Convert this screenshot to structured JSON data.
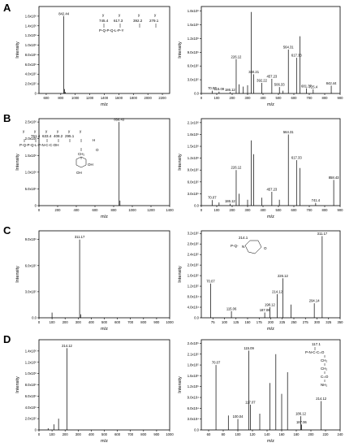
{
  "panel_letters": [
    "A",
    "B",
    "C",
    "D"
  ],
  "chart_data": [
    {
      "panel": "A-left",
      "type": "bar",
      "xlabel": "m/z",
      "ylabel": "Intensity",
      "xlim": [
        500,
        2300
      ],
      "ylim": [
        0,
        1800000.0
      ],
      "xticks": [
        600,
        800,
        1000,
        1200,
        1400,
        1600,
        1800,
        2000,
        2200
      ],
      "yticks": [
        0,
        200000,
        400000,
        600000,
        800000,
        1000000,
        1200000,
        1400000,
        1600000
      ],
      "ytick_labels": [
        "0",
        "2.0x10⁵",
        "4.0x10⁵",
        "6.0x10⁵",
        "8.0x10⁵",
        "1.0x10⁶",
        "1.2x10⁶",
        "1.4x10⁶",
        "1.6x10⁶"
      ],
      "peaks": [
        {
          "x": 842.44,
          "y": 1600000,
          "label": "842.44"
        },
        {
          "x": 852,
          "y": 90000,
          "label": ""
        },
        {
          "x": 862,
          "y": 30000,
          "label": ""
        }
      ]
    },
    {
      "panel": "A-right",
      "type": "bar",
      "xlabel": "m/z",
      "ylabel": "Intensity",
      "xlim": [
        0,
        900
      ],
      "ylim": [
        0,
        1900000.0
      ],
      "xticks": [
        0,
        100,
        200,
        300,
        400,
        500,
        600,
        700,
        800,
        900
      ],
      "yticks": [
        0,
        300000,
        600000,
        900000,
        1200000,
        1500000,
        1800000
      ],
      "ytick_labels": [
        "0.0",
        "3.0x10⁵",
        "6.0x10⁵",
        "9.0x10⁵",
        "1.2x10⁶",
        "1.5x10⁶",
        "1.8x10⁶"
      ],
      "peaks": [
        {
          "x": 70.07,
          "y": 60000,
          "label": "70.07"
        },
        {
          "x": 115.09,
          "y": 40000,
          "label": "115.09"
        },
        {
          "x": 186.12,
          "y": 30000,
          "label": "186.12"
        },
        {
          "x": 226.12,
          "y": 750000,
          "label": "226.12"
        },
        {
          "x": 244,
          "y": 200000,
          "label": ""
        },
        {
          "x": 272,
          "y": 150000,
          "label": ""
        },
        {
          "x": 300,
          "y": 180000,
          "label": ""
        },
        {
          "x": 323,
          "y": 1780000,
          "label": ""
        },
        {
          "x": 340.21,
          "y": 420000,
          "label": "340.21"
        },
        {
          "x": 392.22,
          "y": 230000,
          "label": "392.22"
        },
        {
          "x": 457.23,
          "y": 320000,
          "label": "457.23"
        },
        {
          "x": 506.33,
          "y": 140000,
          "label": "506.33"
        },
        {
          "x": 530,
          "y": 60000,
          "label": ""
        },
        {
          "x": 564.31,
          "y": 960000,
          "label": "564.31"
        },
        {
          "x": 617.33,
          "y": 780000,
          "label": "617.33"
        },
        {
          "x": 640,
          "y": 1250000,
          "label": ""
        },
        {
          "x": 681.37,
          "y": 110000,
          "label": "681.37"
        },
        {
          "x": 725.4,
          "y": 90000,
          "label": "725.4"
        },
        {
          "x": 842.44,
          "y": 170000,
          "label": "842.44"
        }
      ]
    },
    {
      "panel": "B-left",
      "type": "bar",
      "xlabel": "m/z",
      "ylabel": "Intensity",
      "xlim": [
        0,
        1400
      ],
      "ylim": [
        0,
        2600000.0
      ],
      "xticks": [
        0,
        200,
        400,
        600,
        800,
        1000,
        1200,
        1400
      ],
      "yticks": [
        0,
        500000,
        1000000,
        1500000,
        2000000,
        2500000
      ],
      "ytick_labels": [
        "0",
        "5.0x10⁵",
        "1.0x10⁶",
        "1.5x10⁶",
        "2.0x10⁶",
        "2.5x10⁶"
      ],
      "peaks": [
        {
          "x": 858.43,
          "y": 2500000,
          "label": "858.43"
        },
        {
          "x": 868,
          "y": 150000,
          "label": ""
        }
      ]
    },
    {
      "panel": "B-right",
      "type": "bar",
      "xlabel": "m/z",
      "ylabel": "Intensity",
      "xlim": [
        0,
        900
      ],
      "ylim": [
        0,
        2200000.0
      ],
      "xticks": [
        0,
        100,
        200,
        300,
        400,
        500,
        600,
        700,
        800,
        900
      ],
      "yticks": [
        0,
        300000,
        600000,
        900000,
        1200000,
        1500000,
        1800000,
        2100000
      ],
      "ytick_labels": [
        "0.0",
        "3.0x10⁵",
        "6.0x10⁵",
        "9.0x10⁵",
        "1.2x10⁶",
        "1.5x10⁶",
        "1.8x10⁶",
        "2.1x10⁶"
      ],
      "peaks": [
        {
          "x": 70.07,
          "y": 140000,
          "label": "70.07"
        },
        {
          "x": 115,
          "y": 80000,
          "label": ""
        },
        {
          "x": 186.12,
          "y": 50000,
          "label": "186.12"
        },
        {
          "x": 226.12,
          "y": 900000,
          "label": "226.12"
        },
        {
          "x": 244,
          "y": 300000,
          "label": ""
        },
        {
          "x": 300,
          "y": 150000,
          "label": ""
        },
        {
          "x": 323,
          "y": 1650000,
          "label": ""
        },
        {
          "x": 340.21,
          "y": 1300000,
          "label": ""
        },
        {
          "x": 392,
          "y": 200000,
          "label": ""
        },
        {
          "x": 457.23,
          "y": 350000,
          "label": "457.23"
        },
        {
          "x": 506,
          "y": 150000,
          "label": ""
        },
        {
          "x": 564.31,
          "y": 1800000,
          "label": "564.31"
        },
        {
          "x": 617.33,
          "y": 1150000,
          "label": "617.33"
        },
        {
          "x": 640,
          "y": 950000,
          "label": ""
        },
        {
          "x": 741.4,
          "y": 70000,
          "label": "741.4"
        },
        {
          "x": 858.43,
          "y": 650000,
          "label": "858.43"
        }
      ]
    },
    {
      "panel": "C-left",
      "type": "bar",
      "xlabel": "m/z",
      "ylabel": "Intensity",
      "xlim": [
        0,
        1000
      ],
      "ylim": [
        0,
        1000000.0
      ],
      "xticks": [
        0,
        100,
        200,
        300,
        400,
        500,
        600,
        700,
        800,
        900,
        1000
      ],
      "yticks": [
        0,
        300000,
        600000,
        900000
      ],
      "ytick_labels": [
        "0.0",
        "3.0x10⁵",
        "6.0x10⁵",
        "9.0x10⁵"
      ],
      "peaks": [
        {
          "x": 100,
          "y": 60000,
          "label": ""
        },
        {
          "x": 311.17,
          "y": 900000,
          "label": "311.17"
        },
        {
          "x": 320,
          "y": 40000,
          "label": ""
        }
      ]
    },
    {
      "panel": "C-right",
      "type": "bar",
      "xlabel": "m/z",
      "ylabel": "Intensity",
      "xlim": [
        50,
        350
      ],
      "ylim": [
        0,
        330000.0
      ],
      "xticks": [
        75,
        100,
        125,
        150,
        175,
        200,
        225,
        250,
        275,
        300,
        325,
        350
      ],
      "yticks": [
        0,
        40000,
        80000,
        120000,
        160000,
        200000,
        240000,
        280000,
        320000
      ],
      "ytick_labels": [
        "0.0",
        "4.0x10⁴",
        "8.0x10⁴",
        "1.2x10⁵",
        "1.6x10⁵",
        "2.0x10⁵",
        "2.4x10⁵",
        "2.8x10⁵",
        "3.2x10⁵"
      ],
      "peaks": [
        {
          "x": 70.07,
          "y": 130000,
          "label": "70.07"
        },
        {
          "x": 115.06,
          "y": 25000,
          "label": "115.06"
        },
        {
          "x": 187.06,
          "y": 20000,
          "label": "187.06"
        },
        {
          "x": 198.12,
          "y": 40000,
          "label": "198.12"
        },
        {
          "x": 214.12,
          "y": 90000,
          "label": "214.12"
        },
        {
          "x": 226.12,
          "y": 150000,
          "label": "226.12"
        },
        {
          "x": 244,
          "y": 50000,
          "label": ""
        },
        {
          "x": 294.14,
          "y": 55000,
          "label": "294.14"
        },
        {
          "x": 311.17,
          "y": 310000,
          "label": "311.17"
        }
      ]
    },
    {
      "panel": "D-left",
      "type": "bar",
      "xlabel": "m/z",
      "ylabel": "Intensity",
      "xlim": [
        0,
        1000
      ],
      "ylim": [
        0,
        1600000.0
      ],
      "xticks": [
        0,
        100,
        200,
        300,
        400,
        500,
        600,
        700,
        800,
        900,
        1000
      ],
      "yticks": [
        0,
        200000,
        400000,
        600000,
        800000,
        1000000,
        1200000,
        1400000
      ],
      "ytick_labels": [
        "0",
        "2.0x10⁵",
        "4.0x10⁵",
        "6.0x10⁵",
        "8.0x10⁵",
        "1.0x10⁶",
        "1.2x10⁶",
        "1.4x10⁶"
      ],
      "peaks": [
        {
          "x": 70,
          "y": 30000,
          "label": ""
        },
        {
          "x": 115,
          "y": 100000,
          "label": ""
        },
        {
          "x": 150,
          "y": 200000,
          "label": ""
        },
        {
          "x": 214.12,
          "y": 1450000,
          "label": "214.12"
        }
      ]
    },
    {
      "panel": "D-right",
      "type": "bar",
      "xlabel": "m/z",
      "ylabel": "Intensity",
      "xlim": [
        50,
        240
      ],
      "ylim": [
        0,
        250000.0
      ],
      "xticks": [
        60,
        80,
        100,
        120,
        140,
        160,
        180,
        200,
        220,
        240
      ],
      "yticks": [
        0,
        30000,
        60000,
        90000,
        120000,
        150000,
        180000,
        210000,
        240000
      ],
      "ytick_labels": [
        "0.0",
        "3.0x10⁴",
        "6.0x10⁴",
        "9.0x10⁴",
        "1.2x10⁵",
        "1.5x10⁵",
        "1.8x10⁵",
        "2.1x10⁵",
        "2.4x10⁵"
      ],
      "peaks": [
        {
          "x": 70.07,
          "y": 180000,
          "label": "70.07"
        },
        {
          "x": 87,
          "y": 40000,
          "label": ""
        },
        {
          "x": 100.04,
          "y": 30000,
          "label": "100.04"
        },
        {
          "x": 115.09,
          "y": 220000,
          "label": "115.09"
        },
        {
          "x": 117.07,
          "y": 70000,
          "label": "117.07"
        },
        {
          "x": 130,
          "y": 45000,
          "label": ""
        },
        {
          "x": 144,
          "y": 130000,
          "label": ""
        },
        {
          "x": 152,
          "y": 210000,
          "label": ""
        },
        {
          "x": 160,
          "y": 100000,
          "label": ""
        },
        {
          "x": 168,
          "y": 160000,
          "label": ""
        },
        {
          "x": 186.12,
          "y": 38000,
          "label": "186.12"
        },
        {
          "x": 187.06,
          "y": 15000,
          "label": "187.06"
        },
        {
          "x": 214.12,
          "y": 80000,
          "label": "214.12"
        }
      ]
    }
  ],
  "structures": {
    "A": {
      "masses": [
        "745.4",
        "617.3",
        "392.2",
        "279.1"
      ],
      "ions": [
        "y",
        "y",
        "y",
        "y"
      ],
      "sequence": "P-Q-P-Q-L-P-Y"
    },
    "B": {
      "masses": [
        "761.4",
        "633.4",
        "408.2",
        "295.1"
      ],
      "ions": [
        "y",
        "y",
        "y",
        "y",
        "y",
        "y"
      ],
      "sequence": "P-Q-P-Q-L-P-N-C-C-OH",
      "side_chain": [
        "H",
        "O",
        "CH₂",
        "OH",
        "OH"
      ]
    },
    "C": {
      "label": "P-Q-",
      "mass": "214.1",
      "ring_o": "O",
      "ring_n": "N"
    },
    "D": {
      "top": "117.1",
      "line1": "P-N-C-C=O",
      "groups": [
        "CH₂",
        "CH₂",
        "C=O",
        "NH₂"
      ]
    }
  }
}
